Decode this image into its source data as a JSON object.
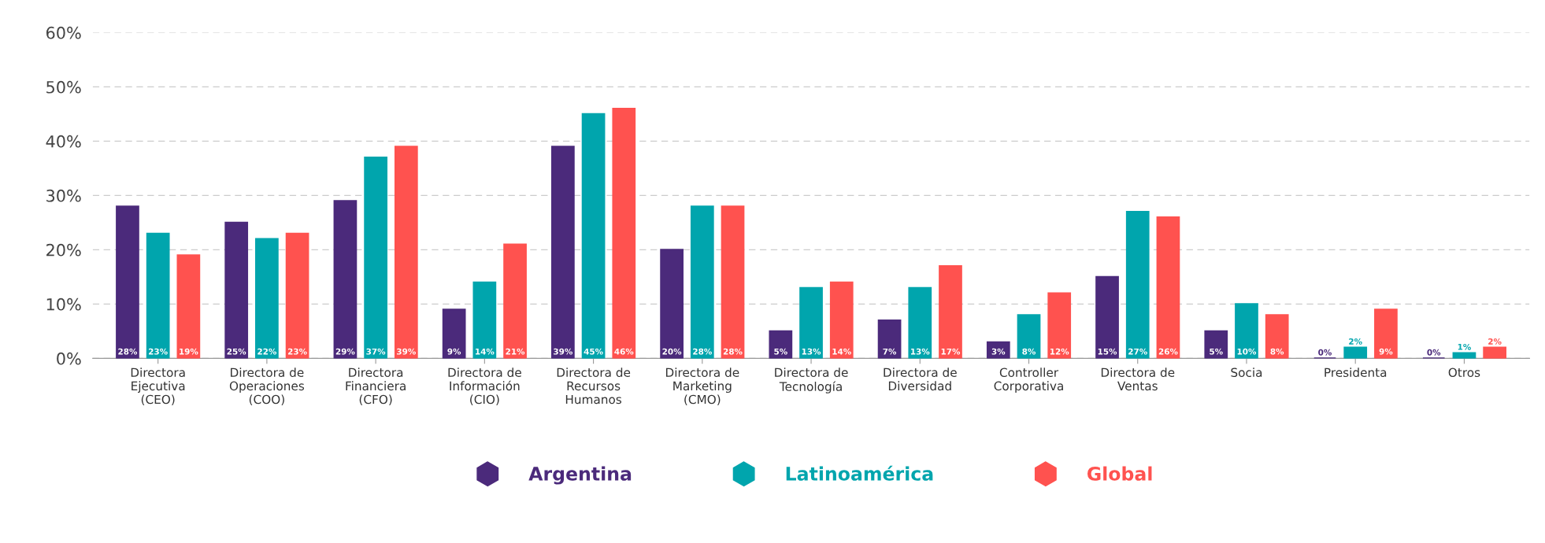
{
  "chart_data": {
    "type": "bar",
    "categories": [
      "Directora\nEjecutiva\n(CEO)",
      "Directora de\nOperaciones\n(COO)",
      "Directora\nFinanciera\n(CFO)",
      "Directora de\nInformación\n(CIO)",
      "Directora de\nRecursos\nHumanos",
      "Directora de\nMarketing\n(CMO)",
      "Directora de\nTecnología",
      "Directora de\nDiversidad",
      "Controller\nCorporativa",
      "Directora de\nVentas",
      "Socia",
      "Presidenta",
      "Otros"
    ],
    "series": [
      {
        "name": "Argentina",
        "color": "#4b2a7b",
        "values": [
          28,
          25,
          29,
          9,
          39,
          20,
          5,
          7,
          3,
          15,
          5,
          0,
          0
        ],
        "value_labels": [
          "28%",
          "25%",
          "29%",
          "9%",
          "39%",
          "20%",
          "5%",
          "7%",
          "3%",
          "15%",
          "5%",
          "0%",
          "0%"
        ]
      },
      {
        "name": "Latinoamérica",
        "color": "#00a5ad",
        "values": [
          23,
          22,
          37,
          14,
          45,
          28,
          13,
          13,
          8,
          27,
          10,
          2,
          1
        ],
        "value_labels": [
          "23%",
          "22%",
          "37%",
          "14%",
          "45%",
          "28%",
          "13%",
          "13%",
          "8%",
          "27%",
          "10%",
          "2%",
          "1%"
        ]
      },
      {
        "name": "Global",
        "color": "#ff524f",
        "values": [
          19,
          23,
          39,
          21,
          46,
          28,
          14,
          17,
          12,
          26,
          8,
          9,
          2
        ],
        "value_labels": [
          "19%",
          "23%",
          "39%",
          "21%",
          "46%",
          "28%",
          "14%",
          "17%",
          "12%",
          "26%",
          "8%",
          "9%",
          "2%"
        ]
      }
    ],
    "ylim": [
      0,
      60
    ],
    "yticks": [
      {
        "value": 0,
        "label": "0%"
      },
      {
        "value": 10,
        "label": "10%"
      },
      {
        "value": 20,
        "label": "20%"
      },
      {
        "value": 30,
        "label": "30%"
      },
      {
        "value": 40,
        "label": "40%"
      },
      {
        "value": 50,
        "label": "50%"
      },
      {
        "value": 60,
        "label": "60%"
      }
    ],
    "grid": "y",
    "legend": "bottom"
  }
}
